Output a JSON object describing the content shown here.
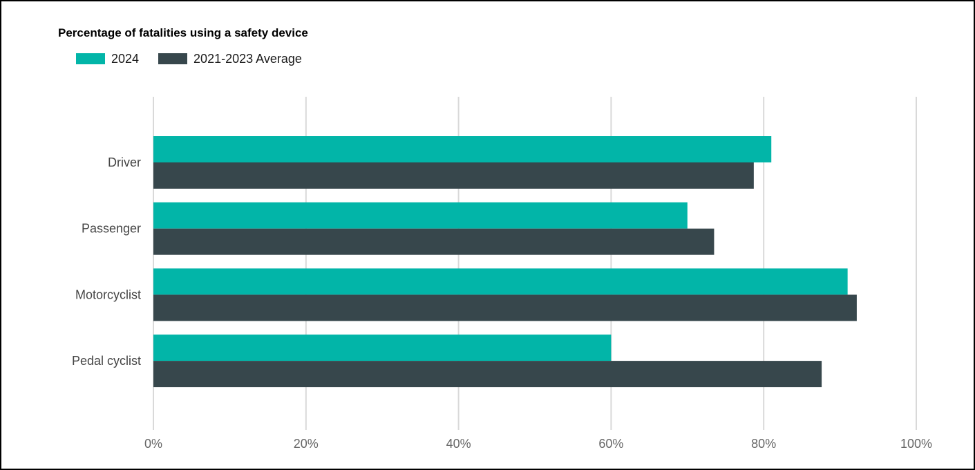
{
  "chart_data": {
    "type": "bar",
    "orientation": "horizontal",
    "title": "Percentage of fatalities using a safety device",
    "categories": [
      "Driver",
      "Passenger",
      "Motorcyclist",
      "Pedal cyclist"
    ],
    "series": [
      {
        "name": "2024",
        "color": "#02b5a8",
        "values": [
          81,
          70,
          91,
          60
        ]
      },
      {
        "name": "2021-2023 Average",
        "color": "#37474c",
        "values": [
          78.7,
          73.5,
          92.2,
          87.6
        ]
      }
    ],
    "xlim": [
      0,
      100
    ],
    "x_ticks": [
      0,
      20,
      40,
      60,
      80,
      100
    ],
    "x_tick_labels": [
      "0%",
      "20%",
      "40%",
      "60%",
      "80%",
      "100%"
    ],
    "grid": "vertical",
    "legend_position": "top-left"
  }
}
